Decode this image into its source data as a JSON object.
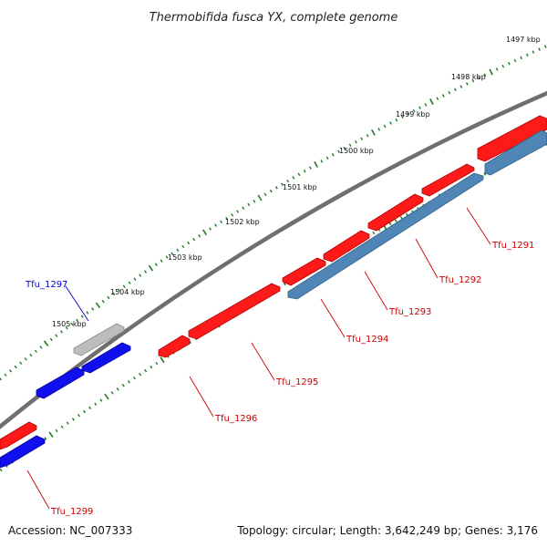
{
  "title": "Thermobifida fusca YX, complete genome",
  "accession_text": "Accession: NC_007333",
  "summary_text": "Topology: circular; Length: 3,642,249 bp; Genes: 3,176",
  "colors": {
    "backbone": "#6f6f6f",
    "tick": "#1f7a1f",
    "forward_gene": "#ff1a1a",
    "reverse_gene": "#1010ee",
    "steel_gene": "#4f86b5",
    "gray_gene": "#bdbdbd",
    "label_red": "#cc0000",
    "label_blue": "#0000cc"
  },
  "scale_labels": [
    "1497 kbp",
    "1498 kbp",
    "1499 kbp",
    "1500 kbp",
    "1501 kbp",
    "1502 kbp",
    "1503 kbp",
    "1504 kbp",
    "1505 kbp"
  ],
  "gene_labels": [
    {
      "id": "Tfu_1291",
      "color": "label_red"
    },
    {
      "id": "Tfu_1292",
      "color": "label_red"
    },
    {
      "id": "Tfu_1293",
      "color": "label_red"
    },
    {
      "id": "Tfu_1294",
      "color": "label_red"
    },
    {
      "id": "Tfu_1295",
      "color": "label_red"
    },
    {
      "id": "Tfu_1296",
      "color": "label_red"
    },
    {
      "id": "Tfu_1297",
      "color": "label_blue"
    },
    {
      "id": "Tfu_1299",
      "color": "label_red"
    }
  ]
}
